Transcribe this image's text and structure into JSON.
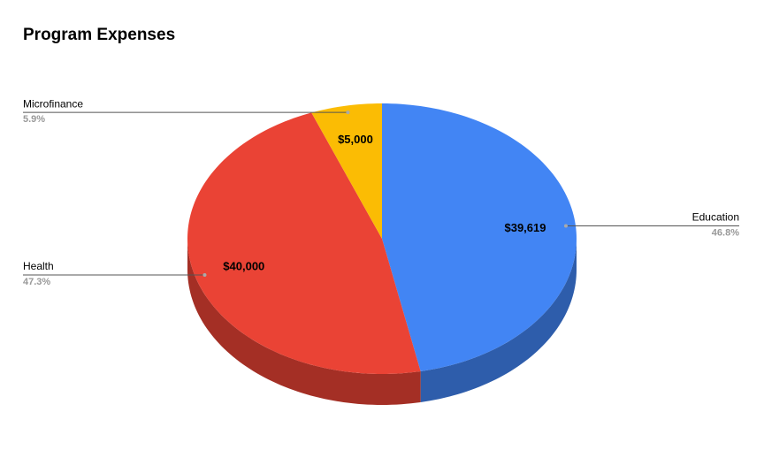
{
  "chart_data": {
    "type": "pie3d",
    "title": "Program Expenses",
    "categories": [
      "Education",
      "Health",
      "Microfinance"
    ],
    "values": [
      39619,
      40000,
      5000
    ],
    "value_labels": [
      "$39,619",
      "$40,000",
      "$5,000"
    ],
    "percentages": [
      {
        "value": 46.8,
        "label": "46.8%"
      },
      {
        "value": 47.3,
        "label": "47.3%"
      },
      {
        "value": 5.9,
        "label": "5.9%"
      }
    ],
    "colors": [
      "#4285f4",
      "#ea4335",
      "#fbbc04"
    ]
  }
}
